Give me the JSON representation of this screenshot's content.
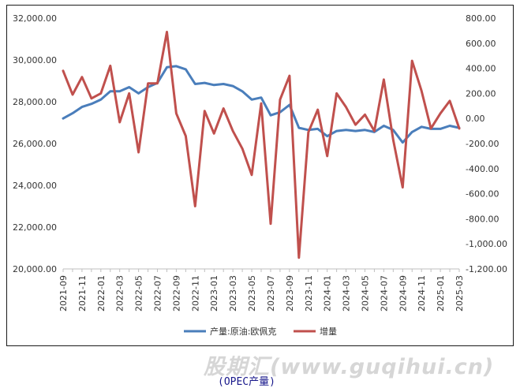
{
  "chart_data": {
    "type": "line",
    "title": "",
    "xlabel": "",
    "ylabel": "",
    "x": [
      "2021-09",
      "2021-10",
      "2021-11",
      "2021-12",
      "2022-01",
      "2022-02",
      "2022-03",
      "2022-04",
      "2022-05",
      "2022-06",
      "2022-07",
      "2022-08",
      "2022-09",
      "2022-10",
      "2022-11",
      "2022-12",
      "2023-01",
      "2023-02",
      "2023-03",
      "2023-04",
      "2023-05",
      "2023-06",
      "2023-07",
      "2023-08",
      "2023-09",
      "2023-10",
      "2023-11",
      "2023-12",
      "2024-01",
      "2024-02",
      "2024-03",
      "2024-04",
      "2024-05",
      "2024-06",
      "2024-07",
      "2024-08",
      "2024-09",
      "2024-10",
      "2024-11",
      "2024-12",
      "2025-01",
      "2025-02",
      "2025-03"
    ],
    "x_tick_labels": [
      "2021-09",
      "2021-11",
      "2022-01",
      "2022-03",
      "2022-05",
      "2022-07",
      "2022-09",
      "2022-11",
      "2023-01",
      "2023-03",
      "2023-05",
      "2023-07",
      "2023-09",
      "2023-11",
      "2024-01",
      "2024-03",
      "2024-05",
      "2024-07",
      "2024-09",
      "2024-11",
      "2025-01",
      "2025-03"
    ],
    "y_left": {
      "ylim": [
        20000,
        32000
      ],
      "ticks": [
        "20,000.00",
        "22,000.00",
        "24,000.00",
        "26,000.00",
        "28,000.00",
        "30,000.00",
        "32,000.00"
      ]
    },
    "y_right": {
      "ylim": [
        -1200,
        800
      ],
      "ticks": [
        "-1,200.00",
        "-1,000.00",
        "-800.00",
        "-600.00",
        "-400.00",
        "-200.00",
        "0.00",
        "200.00",
        "400.00",
        "600.00",
        "800.00"
      ]
    },
    "grid": false,
    "legend_position": "bottom",
    "series": [
      {
        "name": "产量:原油:欧佩克",
        "axis": "left",
        "color": "#4a7ebb",
        "values": [
          27200,
          27450,
          27750,
          27900,
          28100,
          28500,
          28500,
          28700,
          28400,
          28700,
          28900,
          29650,
          29700,
          29550,
          28850,
          28900,
          28800,
          28850,
          28750,
          28500,
          28100,
          28200,
          27350,
          27500,
          27850,
          26750,
          26650,
          26700,
          26350,
          26600,
          26650,
          26600,
          26650,
          26550,
          26850,
          26650,
          26050,
          26550,
          26800,
          26700,
          26700,
          26850,
          26750
        ]
      },
      {
        "name": "增量",
        "axis": "right",
        "color": "#c0504d",
        "values": [
          380,
          190,
          330,
          160,
          200,
          420,
          -30,
          200,
          -270,
          280,
          280,
          690,
          40,
          -140,
          -700,
          60,
          -120,
          80,
          -100,
          -240,
          -450,
          120,
          -840,
          150,
          340,
          -1110,
          -110,
          70,
          -300,
          200,
          90,
          -50,
          30,
          -100,
          310,
          -170,
          -550,
          460,
          220,
          -80,
          40,
          140,
          -80
        ]
      }
    ]
  },
  "footer": {
    "watermark": "股期汇(www.guqihui.cn)",
    "caption": "(OPEC产量)"
  }
}
